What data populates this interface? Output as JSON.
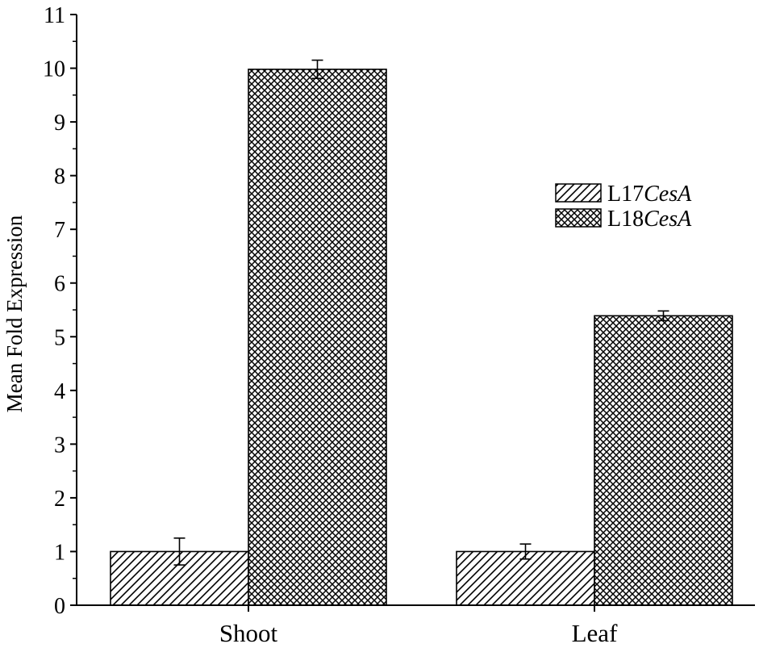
{
  "chart_data": {
    "type": "bar",
    "title": "",
    "xlabel": "",
    "ylabel": "Mean Fold Expression",
    "ylim": [
      0,
      11
    ],
    "yticks": [
      "0",
      "1",
      "2",
      "3",
      "4",
      "5",
      "6",
      "7",
      "8",
      "9",
      "10",
      "11"
    ],
    "categories": [
      "Shoot",
      "Leaf"
    ],
    "series": [
      {
        "name_prefix": "L17",
        "name_italic": "CesA",
        "pattern": "diagonal-hatch",
        "values": [
          1.0,
          1.0
        ],
        "errors": [
          0.25,
          0.14
        ]
      },
      {
        "name_prefix": "L18",
        "name_italic": "CesA",
        "pattern": "cross-hatch",
        "values": [
          9.98,
          5.39
        ],
        "errors": [
          0.17,
          0.09
        ]
      }
    ],
    "grid": false,
    "legend_position": "right"
  }
}
